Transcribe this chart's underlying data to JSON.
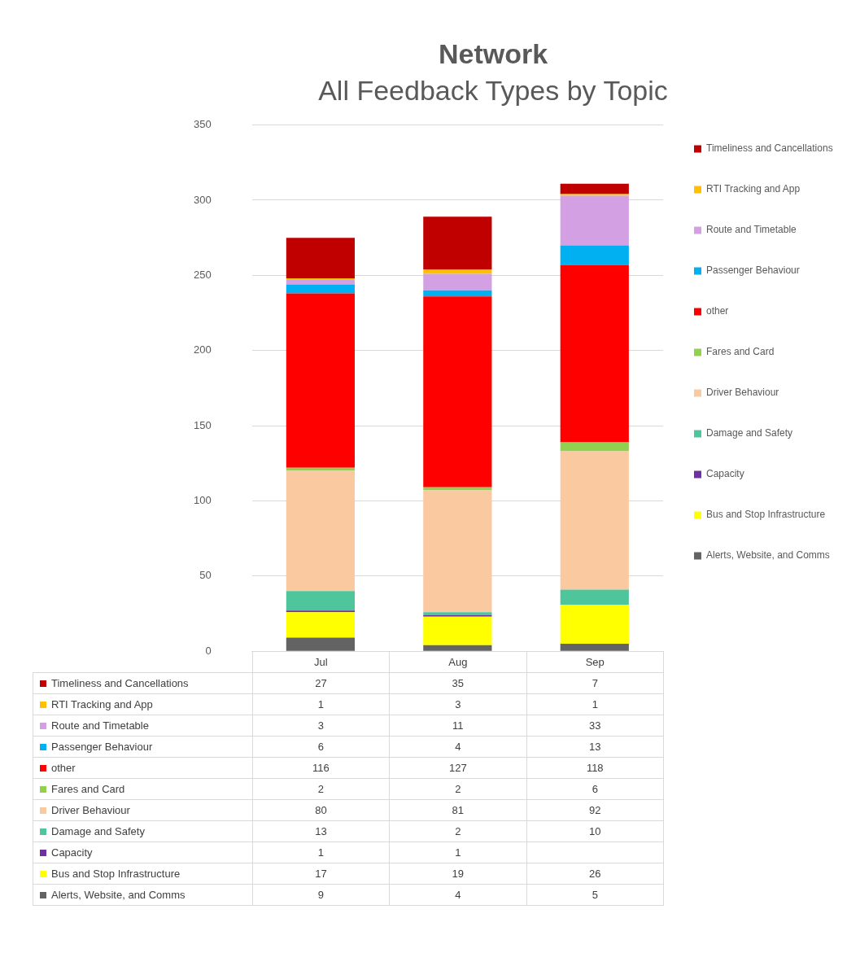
{
  "chart_data": {
    "type": "bar",
    "title": "Network",
    "subtitle": "All Feedback Types by Topic",
    "categories": [
      "Jul",
      "Aug",
      "Sep"
    ],
    "stacked": true,
    "ylim": [
      0,
      350
    ],
    "yticks": [
      0,
      50,
      100,
      150,
      200,
      250,
      300,
      350
    ],
    "grid": "y",
    "legend": "right",
    "data_labels": true,
    "series": [
      {
        "name": "Alerts, Website, and Comms",
        "color": "#636363",
        "values": [
          9,
          4,
          5
        ]
      },
      {
        "name": "Bus and Stop Infrastructure",
        "color": "#ffff00",
        "values": [
          17,
          19,
          26
        ]
      },
      {
        "name": "Capacity",
        "color": "#7030a0",
        "values": [
          1,
          1,
          null
        ]
      },
      {
        "name": "Damage and Safety",
        "color": "#4fc59c",
        "values": [
          13,
          2,
          10
        ]
      },
      {
        "name": "Driver Behaviour",
        "color": "#fac9a0",
        "values": [
          80,
          81,
          92
        ]
      },
      {
        "name": "Fares and Card",
        "color": "#92d050",
        "values": [
          2,
          2,
          6
        ]
      },
      {
        "name": "other",
        "color": "#ff0000",
        "values": [
          116,
          127,
          118
        ]
      },
      {
        "name": "Passenger Behaviour",
        "color": "#00b0f0",
        "values": [
          6,
          4,
          13
        ]
      },
      {
        "name": "Route and Timetable",
        "color": "#d4a0e4",
        "values": [
          3,
          11,
          33
        ]
      },
      {
        "name": "RTI Tracking and App",
        "color": "#ffc000",
        "values": [
          1,
          3,
          1
        ]
      },
      {
        "name": "Timeliness and Cancellations",
        "color": "#c00000",
        "values": [
          27,
          35,
          7
        ]
      }
    ]
  }
}
